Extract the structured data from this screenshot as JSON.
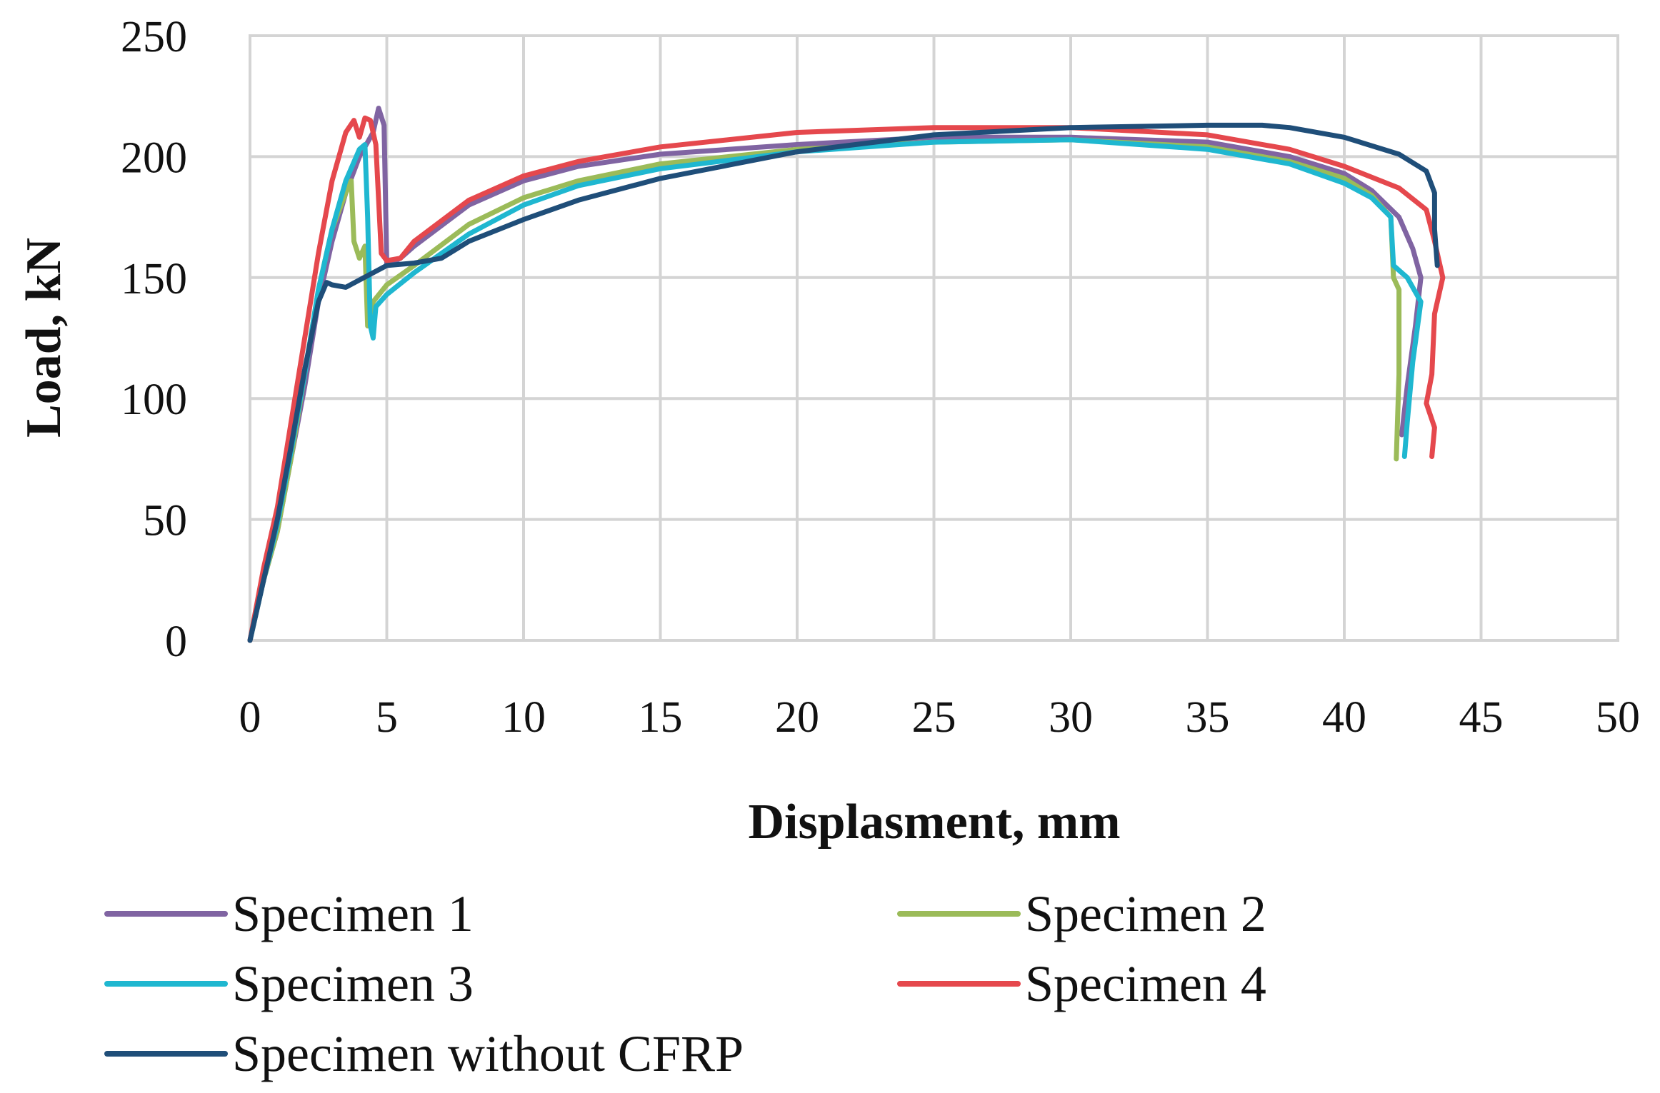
{
  "chart_data": {
    "type": "line",
    "title": "",
    "xlabel": "Displasment, mm",
    "ylabel": "Load, kN",
    "xlim": [
      0,
      50
    ],
    "ylim": [
      0,
      250
    ],
    "x_ticks": [
      0,
      5,
      10,
      15,
      20,
      25,
      30,
      35,
      40,
      45,
      50
    ],
    "y_ticks": [
      0,
      50,
      100,
      150,
      200,
      250
    ],
    "grid": true,
    "legend_position": "bottom",
    "series": [
      {
        "name": "Specimen 1",
        "color": "#8064a2",
        "points": [
          [
            0,
            0
          ],
          [
            0.5,
            25
          ],
          [
            1,
            45
          ],
          [
            1.5,
            75
          ],
          [
            2,
            105
          ],
          [
            2.5,
            140
          ],
          [
            3,
            165
          ],
          [
            3.5,
            185
          ],
          [
            4,
            200
          ],
          [
            4.5,
            210
          ],
          [
            4.7,
            220
          ],
          [
            4.9,
            213
          ],
          [
            5,
            155
          ],
          [
            5.5,
            158
          ],
          [
            6,
            163
          ],
          [
            8,
            180
          ],
          [
            10,
            190
          ],
          [
            12,
            196
          ],
          [
            15,
            201
          ],
          [
            20,
            205
          ],
          [
            25,
            208
          ],
          [
            30,
            208
          ],
          [
            35,
            206
          ],
          [
            38,
            200
          ],
          [
            40,
            193
          ],
          [
            41,
            186
          ],
          [
            42,
            175
          ],
          [
            42.5,
            162
          ],
          [
            42.8,
            150
          ],
          [
            42.6,
            130
          ],
          [
            42.3,
            105
          ],
          [
            42.1,
            85
          ]
        ]
      },
      {
        "name": "Specimen 2",
        "color": "#9bbb59",
        "points": [
          [
            0,
            0
          ],
          [
            0.5,
            25
          ],
          [
            1,
            45
          ],
          [
            1.5,
            75
          ],
          [
            2,
            110
          ],
          [
            2.5,
            145
          ],
          [
            3,
            170
          ],
          [
            3.5,
            185
          ],
          [
            3.7,
            190
          ],
          [
            3.8,
            165
          ],
          [
            4,
            158
          ],
          [
            4.2,
            163
          ],
          [
            4.3,
            130
          ],
          [
            4.5,
            140
          ],
          [
            5,
            147
          ],
          [
            6,
            155
          ],
          [
            8,
            172
          ],
          [
            10,
            183
          ],
          [
            12,
            190
          ],
          [
            15,
            197
          ],
          [
            20,
            203
          ],
          [
            25,
            206
          ],
          [
            30,
            207
          ],
          [
            35,
            204
          ],
          [
            38,
            198
          ],
          [
            40,
            191
          ],
          [
            41,
            184
          ],
          [
            41.7,
            175
          ],
          [
            41.8,
            150
          ],
          [
            42,
            145
          ],
          [
            42,
            110
          ],
          [
            41.9,
            75
          ]
        ]
      },
      {
        "name": "Specimen 3",
        "color": "#1fb7d0",
        "points": [
          [
            0,
            0
          ],
          [
            0.5,
            25
          ],
          [
            1,
            48
          ],
          [
            1.5,
            78
          ],
          [
            2,
            110
          ],
          [
            2.5,
            145
          ],
          [
            3,
            170
          ],
          [
            3.5,
            190
          ],
          [
            4,
            203
          ],
          [
            4.2,
            205
          ],
          [
            4.3,
            175
          ],
          [
            4.4,
            130
          ],
          [
            4.5,
            125
          ],
          [
            4.6,
            138
          ],
          [
            5,
            143
          ],
          [
            6,
            152
          ],
          [
            8,
            168
          ],
          [
            10,
            180
          ],
          [
            12,
            188
          ],
          [
            15,
            195
          ],
          [
            20,
            202
          ],
          [
            25,
            206
          ],
          [
            30,
            207
          ],
          [
            35,
            203
          ],
          [
            38,
            197
          ],
          [
            40,
            189
          ],
          [
            41,
            183
          ],
          [
            41.7,
            175
          ],
          [
            41.8,
            155
          ],
          [
            42.3,
            150
          ],
          [
            42.8,
            140
          ],
          [
            42.5,
            115
          ],
          [
            42.3,
            90
          ],
          [
            42.2,
            76
          ]
        ]
      },
      {
        "name": "Specimen 4",
        "color": "#e5484d",
        "points": [
          [
            0,
            0
          ],
          [
            0.5,
            30
          ],
          [
            1,
            55
          ],
          [
            1.5,
            90
          ],
          [
            2,
            125
          ],
          [
            2.5,
            160
          ],
          [
            3,
            190
          ],
          [
            3.5,
            210
          ],
          [
            3.8,
            215
          ],
          [
            4,
            208
          ],
          [
            4.2,
            216
          ],
          [
            4.4,
            215
          ],
          [
            4.6,
            205
          ],
          [
            4.8,
            160
          ],
          [
            5,
            157
          ],
          [
            5.5,
            158
          ],
          [
            6,
            165
          ],
          [
            8,
            182
          ],
          [
            10,
            192
          ],
          [
            12,
            198
          ],
          [
            15,
            204
          ],
          [
            20,
            210
          ],
          [
            25,
            212
          ],
          [
            30,
            212
          ],
          [
            35,
            209
          ],
          [
            38,
            203
          ],
          [
            40,
            196
          ],
          [
            42,
            187
          ],
          [
            43,
            178
          ],
          [
            43.3,
            165
          ],
          [
            43.6,
            150
          ],
          [
            43.3,
            135
          ],
          [
            43.2,
            110
          ],
          [
            43,
            98
          ],
          [
            43.3,
            88
          ],
          [
            43.2,
            76
          ]
        ]
      },
      {
        "name": "Specimen without CFRP",
        "color": "#1f4e79",
        "points": [
          [
            0,
            0
          ],
          [
            0.5,
            25
          ],
          [
            1,
            50
          ],
          [
            1.5,
            80
          ],
          [
            2,
            112
          ],
          [
            2.5,
            140
          ],
          [
            2.8,
            148
          ],
          [
            3,
            147
          ],
          [
            3.5,
            146
          ],
          [
            4,
            149
          ],
          [
            5,
            155
          ],
          [
            6,
            156
          ],
          [
            7,
            158
          ],
          [
            8,
            165
          ],
          [
            10,
            174
          ],
          [
            12,
            182
          ],
          [
            15,
            191
          ],
          [
            20,
            202
          ],
          [
            25,
            209
          ],
          [
            30,
            212
          ],
          [
            35,
            213
          ],
          [
            37,
            213
          ],
          [
            38,
            212
          ],
          [
            40,
            208
          ],
          [
            42,
            201
          ],
          [
            43,
            194
          ],
          [
            43.3,
            185
          ],
          [
            43.3,
            170
          ],
          [
            43.4,
            155
          ]
        ]
      }
    ]
  }
}
